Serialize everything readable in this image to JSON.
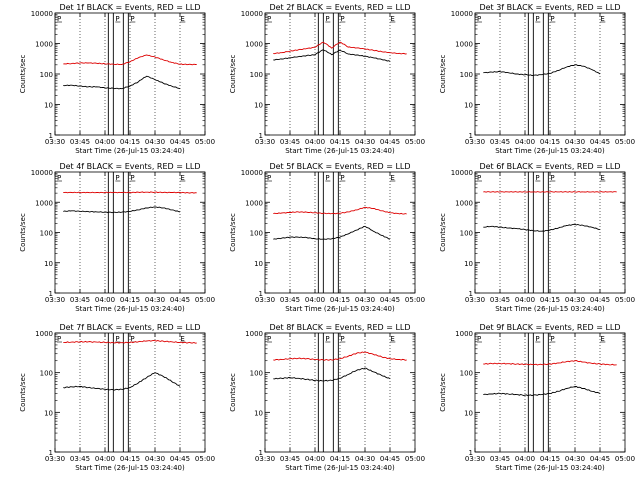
{
  "figure": {
    "xlabel": "Start Time (26-Jul-15 03:24:40)",
    "ylabel": "Counts/sec"
  },
  "colors": {
    "events": "#000000",
    "lld": "#dd0000",
    "axis": "#000000"
  },
  "chart_data": [
    {
      "type": "line",
      "title": "Det 1f BLACK = Events, RED = LLD",
      "xlabel": "Start Time (26-Jul-15 03:24:40)",
      "ylabel": "Counts/sec",
      "yscale": "log",
      "ylim": [
        1,
        10000
      ],
      "xlim": [
        "03:30",
        "05:00"
      ],
      "x_ticks": [
        "03:30",
        "03:45",
        "04:00",
        "04:15",
        "04:30",
        "04:45",
        "05:00"
      ],
      "y_ticks": [
        "1",
        "10",
        "100",
        "1000",
        "10000"
      ],
      "vertical_lines": [
        "04:02",
        "04:05",
        "04:11",
        "04:14"
      ],
      "markers": [
        {
          "label": "P",
          "x": "03:30"
        },
        {
          "label": "P",
          "x": "04:05"
        },
        {
          "label": "P",
          "x": "04:14"
        },
        {
          "label": "E",
          "x": "04:44"
        }
      ],
      "x": [
        "03:35",
        "03:40",
        "03:45",
        "03:50",
        "03:55",
        "04:00",
        "04:05",
        "04:10",
        "04:15",
        "04:20",
        "04:25",
        "04:30",
        "04:35",
        "04:40",
        "04:45",
        "04:50",
        "04:55"
      ],
      "series": [
        {
          "name": "LLD",
          "values": [
            215,
            220,
            230,
            230,
            225,
            215,
            210,
            205,
            250,
            340,
            420,
            360,
            290,
            240,
            210,
            205,
            205
          ]
        },
        {
          "name": "Events",
          "values": [
            42,
            43,
            40,
            38,
            38,
            35,
            34,
            33,
            40,
            55,
            85,
            65,
            50,
            40,
            33,
            null,
            null
          ]
        }
      ]
    },
    {
      "type": "line",
      "title": "Det 2f BLACK = Events, RED = LLD",
      "xlabel": "Start Time (26-Jul-15 03:24:40)",
      "ylabel": "Counts/sec",
      "yscale": "log",
      "ylim": [
        1,
        10000
      ],
      "xlim": [
        "03:30",
        "05:00"
      ],
      "x_ticks": [
        "03:30",
        "03:45",
        "04:00",
        "04:15",
        "04:30",
        "04:45",
        "05:00"
      ],
      "y_ticks": [
        "1",
        "10",
        "100",
        "1000",
        "10000"
      ],
      "vertical_lines": [
        "04:02",
        "04:05",
        "04:11",
        "04:14"
      ],
      "markers": [
        {
          "label": "P",
          "x": "03:30"
        },
        {
          "label": "P",
          "x": "04:05"
        },
        {
          "label": "P",
          "x": "04:14"
        },
        {
          "label": "E",
          "x": "04:44"
        }
      ],
      "x": [
        "03:35",
        "03:40",
        "03:45",
        "03:50",
        "03:55",
        "04:00",
        "04:05",
        "04:10",
        "04:15",
        "04:20",
        "04:25",
        "04:30",
        "04:35",
        "04:40",
        "04:45",
        "04:50",
        "04:55"
      ],
      "series": [
        {
          "name": "LLD",
          "values": [
            470,
            500,
            560,
            620,
            680,
            750,
            1100,
            700,
            1100,
            760,
            720,
            660,
            600,
            540,
            500,
            470,
            460
          ]
        },
        {
          "name": "Events",
          "values": [
            290,
            310,
            340,
            370,
            400,
            430,
            620,
            430,
            600,
            450,
            420,
            380,
            340,
            300,
            260,
            null,
            null
          ]
        }
      ]
    },
    {
      "type": "line",
      "title": "Det 3f BLACK = Events, RED = LLD",
      "xlabel": "Start Time (26-Jul-15 03:24:40)",
      "ylabel": "Counts/sec",
      "yscale": "log",
      "ylim": [
        1,
        10000
      ],
      "xlim": [
        "03:30",
        "05:00"
      ],
      "x_ticks": [
        "03:30",
        "03:45",
        "04:00",
        "04:15",
        "04:30",
        "04:45",
        "05:00"
      ],
      "y_ticks": [
        "1",
        "10",
        "100",
        "1000",
        "10000"
      ],
      "vertical_lines": [
        "04:02",
        "04:05",
        "04:11",
        "04:14"
      ],
      "markers": [
        {
          "label": "P",
          "x": "03:30"
        },
        {
          "label": "P",
          "x": "04:05"
        },
        {
          "label": "P",
          "x": "04:14"
        },
        {
          "label": "E",
          "x": "04:44"
        }
      ],
      "x": [
        "03:35",
        "03:40",
        "03:45",
        "03:50",
        "03:55",
        "04:00",
        "04:05",
        "04:10",
        "04:15",
        "04:20",
        "04:25",
        "04:30",
        "04:35",
        "04:40",
        "04:45",
        "04:50",
        "04:55"
      ],
      "series": [
        {
          "name": "LLD",
          "values": [
            null,
            null,
            null,
            null,
            null,
            null,
            null,
            null,
            null,
            null,
            null,
            null,
            null,
            null,
            null,
            null,
            null
          ]
        },
        {
          "name": "Events",
          "values": [
            110,
            115,
            120,
            110,
            100,
            95,
            90,
            95,
            105,
            130,
            170,
            200,
            180,
            140,
            100,
            null,
            null
          ]
        }
      ]
    },
    {
      "type": "line",
      "title": "Det 4f BLACK = Events, RED = LLD",
      "xlabel": "Start Time (26-Jul-15 03:24:40)",
      "ylabel": "Counts/sec",
      "yscale": "log",
      "ylim": [
        1,
        10000
      ],
      "xlim": [
        "03:30",
        "05:00"
      ],
      "x_ticks": [
        "03:30",
        "03:45",
        "04:00",
        "04:15",
        "04:30",
        "04:45",
        "05:00"
      ],
      "y_ticks": [
        "1",
        "10",
        "100",
        "1000",
        "10000"
      ],
      "vertical_lines": [
        "04:02",
        "04:05",
        "04:11",
        "04:14"
      ],
      "markers": [
        {
          "label": "P",
          "x": "03:30"
        },
        {
          "label": "P",
          "x": "04:05"
        },
        {
          "label": "P",
          "x": "04:14"
        },
        {
          "label": "E",
          "x": "04:44"
        }
      ],
      "x": [
        "03:35",
        "03:40",
        "03:45",
        "03:50",
        "03:55",
        "04:00",
        "04:05",
        "04:10",
        "04:15",
        "04:20",
        "04:25",
        "04:30",
        "04:35",
        "04:40",
        "04:45",
        "04:50",
        "04:55"
      ],
      "series": [
        {
          "name": "LLD",
          "values": [
            2100,
            2100,
            2100,
            2100,
            2100,
            2100,
            2100,
            2100,
            2100,
            2150,
            2150,
            2150,
            2100,
            2100,
            2100,
            2050,
            2050
          ]
        },
        {
          "name": "Events",
          "values": [
            500,
            520,
            500,
            490,
            480,
            470,
            460,
            470,
            500,
            560,
            650,
            700,
            650,
            560,
            480,
            null,
            null
          ]
        }
      ]
    },
    {
      "type": "line",
      "title": "Det 5f BLACK = Events, RED = LLD",
      "xlabel": "Start Time (26-Jul-15 03:24:40)",
      "ylabel": "Counts/sec",
      "yscale": "log",
      "ylim": [
        1,
        10000
      ],
      "xlim": [
        "03:30",
        "05:00"
      ],
      "x_ticks": [
        "03:30",
        "03:45",
        "04:00",
        "04:15",
        "04:30",
        "04:45",
        "05:00"
      ],
      "y_ticks": [
        "1",
        "10",
        "100",
        "1000",
        "10000"
      ],
      "vertical_lines": [
        "04:02",
        "04:05",
        "04:11",
        "04:14"
      ],
      "markers": [
        {
          "label": "P",
          "x": "03:30"
        },
        {
          "label": "P",
          "x": "04:05"
        },
        {
          "label": "P",
          "x": "04:14"
        },
        {
          "label": "E",
          "x": "04:44"
        }
      ],
      "x": [
        "03:35",
        "03:40",
        "03:45",
        "03:50",
        "03:55",
        "04:00",
        "04:05",
        "04:10",
        "04:15",
        "04:20",
        "04:25",
        "04:30",
        "04:35",
        "04:40",
        "04:45",
        "04:50",
        "04:55"
      ],
      "series": [
        {
          "name": "LLD",
          "values": [
            420,
            440,
            460,
            480,
            470,
            450,
            430,
            420,
            430,
            480,
            560,
            680,
            620,
            520,
            450,
            420,
            410
          ]
        },
        {
          "name": "Events",
          "values": [
            60,
            65,
            70,
            70,
            68,
            62,
            60,
            62,
            70,
            90,
            120,
            160,
            110,
            80,
            60,
            null,
            null
          ]
        }
      ]
    },
    {
      "type": "line",
      "title": "Det 6f BLACK = Events, RED = LLD",
      "xlabel": "Start Time (26-Jul-15 03:24:40)",
      "ylabel": "Counts/sec",
      "yscale": "log",
      "ylim": [
        1,
        10000
      ],
      "xlim": [
        "03:30",
        "05:00"
      ],
      "x_ticks": [
        "03:30",
        "03:45",
        "04:00",
        "04:15",
        "04:30",
        "04:45",
        "05:00"
      ],
      "y_ticks": [
        "1",
        "10",
        "100",
        "1000",
        "10000"
      ],
      "vertical_lines": [
        "04:02",
        "04:05",
        "04:11",
        "04:14"
      ],
      "markers": [
        {
          "label": "P",
          "x": "03:30"
        },
        {
          "label": "P",
          "x": "04:05"
        },
        {
          "label": "P",
          "x": "04:14"
        },
        {
          "label": "E",
          "x": "04:44"
        }
      ],
      "x": [
        "03:35",
        "03:40",
        "03:45",
        "03:50",
        "03:55",
        "04:00",
        "04:05",
        "04:10",
        "04:15",
        "04:20",
        "04:25",
        "04:30",
        "04:35",
        "04:40",
        "04:45",
        "04:50",
        "04:55"
      ],
      "series": [
        {
          "name": "LLD",
          "values": [
            2200,
            2200,
            2200,
            2200,
            2200,
            2200,
            2200,
            2200,
            2200,
            2200,
            2200,
            2200,
            2200,
            2200,
            2200,
            2200,
            2200
          ]
        },
        {
          "name": "Events",
          "values": [
            150,
            160,
            150,
            140,
            135,
            125,
            115,
            110,
            120,
            140,
            170,
            185,
            170,
            150,
            125,
            null,
            null
          ]
        }
      ]
    },
    {
      "type": "line",
      "title": "Det 7f BLACK = Events, RED = LLD",
      "xlabel": "Start Time (26-Jul-15 03:24:40)",
      "ylabel": "Counts/sec",
      "yscale": "log",
      "ylim": [
        1,
        1000
      ],
      "xlim": [
        "03:30",
        "05:00"
      ],
      "x_ticks": [
        "03:30",
        "03:45",
        "04:00",
        "04:15",
        "04:30",
        "04:45",
        "05:00"
      ],
      "y_ticks": [
        "1",
        "10",
        "100",
        "1000"
      ],
      "vertical_lines": [
        "04:02",
        "04:05",
        "04:11",
        "04:14"
      ],
      "markers": [
        {
          "label": "P",
          "x": "03:30"
        },
        {
          "label": "P",
          "x": "04:05"
        },
        {
          "label": "P",
          "x": "04:14"
        },
        {
          "label": "E",
          "x": "04:44"
        }
      ],
      "x": [
        "03:35",
        "03:40",
        "03:45",
        "03:50",
        "03:55",
        "04:00",
        "04:05",
        "04:10",
        "04:15",
        "04:20",
        "04:25",
        "04:30",
        "04:35",
        "04:40",
        "04:45",
        "04:50",
        "04:55"
      ],
      "series": [
        {
          "name": "LLD",
          "values": [
            580,
            590,
            600,
            600,
            590,
            580,
            570,
            570,
            580,
            600,
            630,
            640,
            620,
            600,
            580,
            570,
            560
          ]
        },
        {
          "name": "Events",
          "values": [
            42,
            44,
            45,
            42,
            40,
            38,
            37,
            38,
            42,
            55,
            75,
            100,
            80,
            60,
            45,
            null,
            null
          ]
        }
      ]
    },
    {
      "type": "line",
      "title": "Det 8f BLACK = Events, RED = LLD",
      "xlabel": "Start Time (26-Jul-15 03:24:40)",
      "ylabel": "Counts/sec",
      "yscale": "log",
      "ylim": [
        1,
        1000
      ],
      "xlim": [
        "03:30",
        "05:00"
      ],
      "x_ticks": [
        "03:30",
        "03:45",
        "04:00",
        "04:15",
        "04:30",
        "04:45",
        "05:00"
      ],
      "y_ticks": [
        "1",
        "10",
        "100",
        "1000"
      ],
      "vertical_lines": [
        "04:02",
        "04:05",
        "04:11",
        "04:14"
      ],
      "markers": [
        {
          "label": "P",
          "x": "03:30"
        },
        {
          "label": "P",
          "x": "04:05"
        },
        {
          "label": "P",
          "x": "04:14"
        },
        {
          "label": "E",
          "x": "04:44"
        }
      ],
      "x": [
        "03:35",
        "03:40",
        "03:45",
        "03:50",
        "03:55",
        "04:00",
        "04:05",
        "04:10",
        "04:15",
        "04:20",
        "04:25",
        "04:30",
        "04:35",
        "04:40",
        "04:45",
        "04:50",
        "04:55"
      ],
      "series": [
        {
          "name": "LLD",
          "values": [
            210,
            215,
            225,
            230,
            225,
            215,
            210,
            210,
            225,
            260,
            310,
            330,
            290,
            250,
            225,
            215,
            210
          ]
        },
        {
          "name": "Events",
          "values": [
            70,
            72,
            75,
            72,
            68,
            64,
            62,
            64,
            72,
            90,
            115,
            130,
            105,
            85,
            70,
            null,
            null
          ]
        }
      ]
    },
    {
      "type": "line",
      "title": "Det 9f BLACK = Events, RED = LLD",
      "xlabel": "Start Time (26-Jul-15 03:24:40)",
      "ylabel": "Counts/sec",
      "yscale": "log",
      "ylim": [
        1,
        1000
      ],
      "xlim": [
        "03:30",
        "05:00"
      ],
      "x_ticks": [
        "03:30",
        "03:45",
        "04:00",
        "04:15",
        "04:30",
        "04:45",
        "05:00"
      ],
      "y_ticks": [
        "1",
        "10",
        "100",
        "1000"
      ],
      "vertical_lines": [
        "04:02",
        "04:05",
        "04:11",
        "04:14"
      ],
      "markers": [
        {
          "label": "P",
          "x": "03:30"
        },
        {
          "label": "P",
          "x": "04:05"
        },
        {
          "label": "P",
          "x": "04:14"
        },
        {
          "label": "E",
          "x": "04:44"
        }
      ],
      "x": [
        "03:35",
        "03:40",
        "03:45",
        "03:50",
        "03:55",
        "04:00",
        "04:05",
        "04:10",
        "04:15",
        "04:20",
        "04:25",
        "04:30",
        "04:35",
        "04:40",
        "04:45",
        "04:50",
        "04:55"
      ],
      "series": [
        {
          "name": "LLD",
          "values": [
            165,
            170,
            170,
            168,
            165,
            162,
            160,
            160,
            165,
            175,
            190,
            200,
            185,
            172,
            165,
            160,
            158
          ]
        },
        {
          "name": "Events",
          "values": [
            28,
            29,
            30,
            29,
            28,
            27,
            27,
            28,
            30,
            34,
            40,
            45,
            40,
            34,
            30,
            null,
            null
          ]
        }
      ]
    }
  ]
}
